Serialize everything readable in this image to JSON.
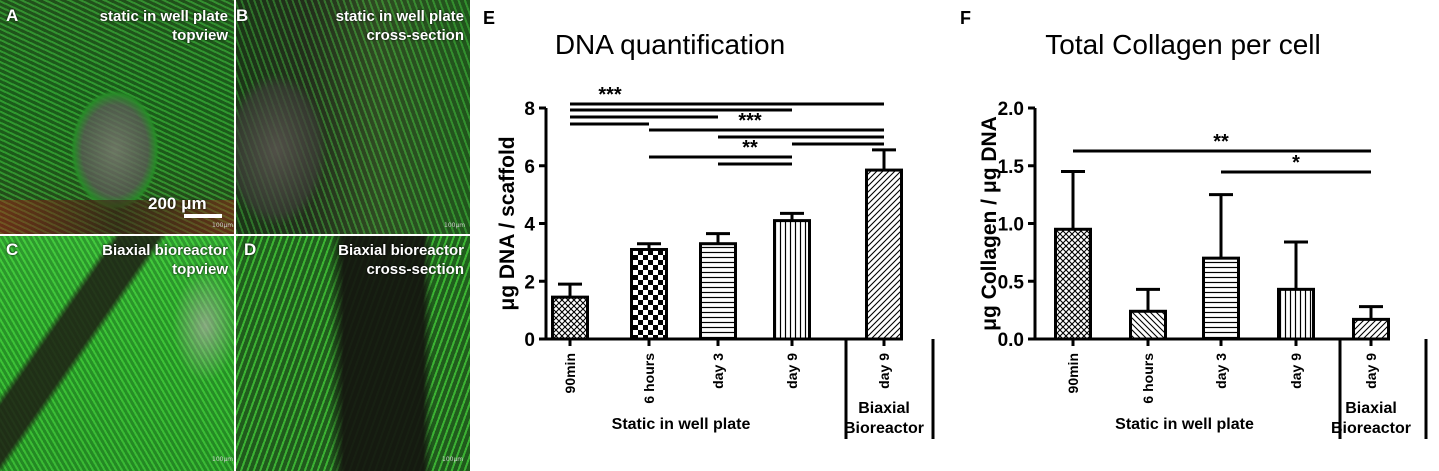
{
  "panels": {
    "A": {
      "letter": "A",
      "title_line1": "static in well plate",
      "title_line2": "topview",
      "scale_label": "200 μm",
      "micro_label": "100μm"
    },
    "B": {
      "letter": "B",
      "title_line1": "static in well plate",
      "title_line2": "cross-section",
      "micro_label": "100μm"
    },
    "C": {
      "letter": "C",
      "title_line1": "Biaxial bioreactor",
      "title_line2": "topview",
      "micro_label": "100μm"
    },
    "D": {
      "letter": "D",
      "title_line1": "Biaxial bioreactor",
      "title_line2": "cross-section",
      "micro_label": "100μm"
    }
  },
  "colors": {
    "cell_green": "#2fd12f",
    "nuclei_red": "#e0241c",
    "background_dark": "#1a1a14",
    "bar_stroke": "#000000"
  },
  "chart_data": [
    {
      "panel_letter": "E",
      "type": "bar",
      "title": "DNA quantification",
      "ylabel": "μg DNA / scaffold",
      "ylim": [
        0,
        8
      ],
      "yticks": [
        "0",
        "2",
        "4",
        "6",
        "8"
      ],
      "categories": [
        "90min",
        "6 hours",
        "day 3",
        "day 9",
        "day 9"
      ],
      "values": [
        1.45,
        3.1,
        3.3,
        4.1,
        5.85
      ],
      "errors": [
        0.45,
        0.2,
        0.35,
        0.25,
        0.7
      ],
      "patterns": [
        "crosshatch",
        "checker",
        "horizontal",
        "vertical",
        "diagonal"
      ],
      "group_labels": [
        "Static in well plate",
        "Biaxial",
        "Bioreactor"
      ],
      "significance": [
        {
          "label": "***",
          "lines": [
            [
              0,
              4
            ],
            [
              0,
              3
            ],
            [
              0,
              2
            ],
            [
              0,
              1
            ]
          ]
        },
        {
          "label": "***",
          "lines": [
            [
              1,
              4
            ],
            [
              2,
              4
            ],
            [
              3,
              4
            ]
          ]
        },
        {
          "label": "**",
          "lines": [
            [
              1,
              3
            ],
            [
              2,
              3
            ]
          ]
        }
      ]
    },
    {
      "panel_letter": "F",
      "type": "bar",
      "title": "Total Collagen per cell",
      "ylabel": "μg Collagen / μg DNA",
      "ylim": [
        0,
        2.0
      ],
      "yticks": [
        "0.0",
        "0.5",
        "1.0",
        "1.5",
        "2.0"
      ],
      "categories": [
        "90min",
        "6 hours",
        "day 3",
        "day 9",
        "day 9"
      ],
      "values": [
        0.95,
        0.24,
        0.7,
        0.43,
        0.17
      ],
      "errors": [
        0.5,
        0.19,
        0.55,
        0.41,
        0.11
      ],
      "patterns": [
        "crosshatch",
        "diagonal-back",
        "horizontal",
        "vertical",
        "diagonal"
      ],
      "group_labels": [
        "Static in well plate",
        "Biaxial",
        "Bioreactor"
      ],
      "significance": [
        {
          "label": "**",
          "lines": [
            [
              0,
              4
            ]
          ]
        },
        {
          "label": "*",
          "lines": [
            [
              2,
              4
            ]
          ]
        }
      ]
    }
  ]
}
